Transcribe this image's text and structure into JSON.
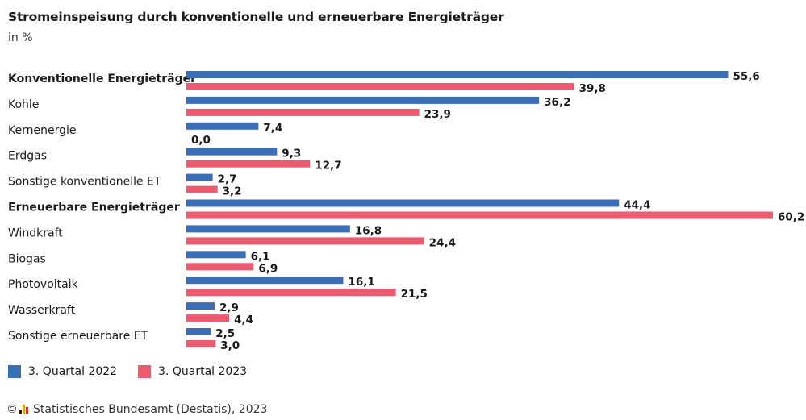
{
  "header": {
    "title": "Stromeinspeisung durch konventionelle und erneuerbare Energieträger",
    "subtitle": "in %"
  },
  "colors": {
    "series_2022": "#3a6fb8",
    "series_2023": "#ec5a70"
  },
  "chart_data": {
    "type": "bar",
    "orientation": "horizontal",
    "categories": [
      "Konventionelle Energieträger",
      "Kohle",
      "Kernenergie",
      "Erdgas",
      "Sonstige konventionelle ET",
      "Erneuerbare Energieträger",
      "Windkraft",
      "Biogas",
      "Photovoltaik",
      "Wasserkraft",
      "Sonstige erneuerbare ET"
    ],
    "bold_categories": [
      "Konventionelle Energieträger",
      "Erneuerbare Energieträger"
    ],
    "series": [
      {
        "name": "3. Quartal 2022",
        "color": "#3a6fb8",
        "values": [
          55.6,
          36.2,
          7.4,
          9.3,
          2.7,
          44.4,
          16.8,
          6.1,
          16.1,
          2.9,
          2.5
        ],
        "labels": [
          "55,6",
          "36,2",
          "7,4",
          "9,3",
          "2,7",
          "44,4",
          "16,8",
          "6,1",
          "16,1",
          "2,9",
          "2,5"
        ]
      },
      {
        "name": "3. Quartal 2023",
        "color": "#ec5a70",
        "values": [
          39.8,
          23.9,
          0.0,
          12.7,
          3.2,
          60.2,
          24.4,
          6.9,
          21.5,
          4.4,
          3.0
        ],
        "labels": [
          "39,8",
          "23,9",
          "0,0",
          "12,7",
          "3,2",
          "60,2",
          "24,4",
          "6,9",
          "21,5",
          "4,4",
          "3,0"
        ]
      }
    ],
    "xlim": [
      0,
      60.2
    ],
    "grid": false,
    "legend_position": "bottom-left",
    "title": "Stromeinspeisung durch konventionelle und erneuerbare Energieträger",
    "subtitle": "in %"
  },
  "legend": {
    "items": [
      "3. Quartal 2022",
      "3. Quartal 2023"
    ]
  },
  "footer": {
    "copyright_symbol": "©",
    "source": "Statistisches Bundesamt (Destatis), 2023"
  }
}
